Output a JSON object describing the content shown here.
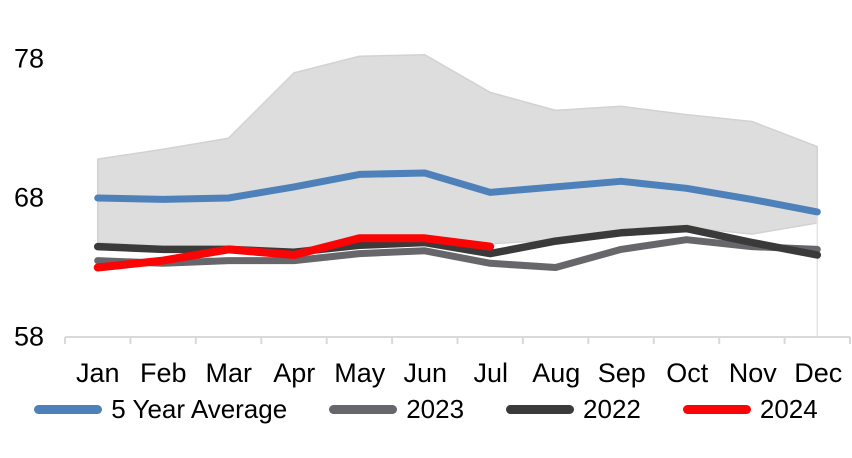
{
  "chart_data": {
    "type": "line",
    "title": "",
    "xlabel": "",
    "ylabel": "",
    "categories": [
      "Jan",
      "Feb",
      "Mar",
      "Apr",
      "May",
      "Jun",
      "Jul",
      "Aug",
      "Sep",
      "Oct",
      "Nov",
      "Dec"
    ],
    "y_ticks": [
      "78",
      "68",
      "58"
    ],
    "y_tick_values": [
      78,
      68,
      58
    ],
    "ylim": [
      58,
      80
    ],
    "grid": "off",
    "legend_position": "bottom",
    "axis_color": "#D9D9D9",
    "band": {
      "name": "5-year-range-band",
      "fill": "#DDDDDD",
      "edge": "#D2D2D2",
      "max": [
        70.8,
        71.5,
        72.3,
        77.0,
        78.2,
        78.3,
        75.6,
        74.3,
        74.6,
        74.0,
        73.5,
        71.7
      ],
      "min": [
        64.8,
        64.5,
        64.3,
        64.1,
        65.2,
        65.2,
        64.7,
        65.0,
        65.7,
        65.9,
        65.4,
        66.2
      ]
    },
    "series": [
      {
        "name": "5 Year Average",
        "color": "#4E81BA",
        "width": 7,
        "values": [
          68.0,
          67.9,
          68.0,
          68.8,
          69.7,
          69.8,
          68.4,
          68.8,
          69.2,
          68.7,
          67.9,
          67.0
        ]
      },
      {
        "name": "2023",
        "color": "#66666B",
        "width": 7,
        "values": [
          63.5,
          63.3,
          63.5,
          63.5,
          64.0,
          64.2,
          63.3,
          63.0,
          64.3,
          65.0,
          64.5,
          64.3
        ]
      },
      {
        "name": "2022",
        "color": "#3A3A3A",
        "width": 7.5,
        "values": [
          64.5,
          64.3,
          64.3,
          64.1,
          64.6,
          64.8,
          64.0,
          64.9,
          65.5,
          65.8,
          64.8,
          63.9
        ]
      },
      {
        "name": "2024",
        "color": "#FA0505",
        "width": 8,
        "values": [
          63.0,
          63.5,
          64.3,
          63.9,
          65.1,
          65.1,
          64.5,
          null,
          null,
          null,
          null,
          null
        ]
      }
    ]
  }
}
